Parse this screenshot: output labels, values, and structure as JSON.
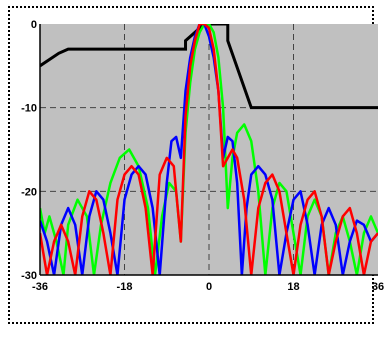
{
  "chart_data": {
    "type": "line",
    "title": "",
    "xlabel": "",
    "ylabel": "",
    "xlim": [
      -36,
      36
    ],
    "ylim": [
      -30,
      0
    ],
    "x_ticks": [
      "-36",
      "-18",
      "0",
      "18",
      "36"
    ],
    "y_ticks": [
      "0",
      "-10",
      "-20",
      "-30"
    ],
    "grid": true,
    "legend": "none",
    "background_color": "#c0c0c0",
    "mask": {
      "color": "#000000",
      "x": [
        -36,
        -32,
        -30,
        -5,
        -5,
        -1,
        4,
        4,
        9,
        36
      ],
      "y": [
        -5,
        -3.5,
        -3,
        -3,
        -2,
        0,
        0,
        -2,
        -10,
        -10
      ]
    },
    "series": [
      {
        "color": "#00ff00",
        "x": [
          -36,
          -35,
          -34,
          -32.5,
          -31,
          -30,
          -28,
          -26,
          -24.5,
          -23,
          -21,
          -19,
          -17,
          -15,
          -13,
          -11.5,
          -10,
          -8.5,
          -7,
          -6,
          -5,
          -4,
          -3,
          -2,
          -1,
          0,
          1,
          2,
          3,
          4,
          5,
          6,
          7.5,
          9,
          10.5,
          12,
          13.5,
          15,
          16.5,
          18,
          19.5,
          21,
          22.5,
          24,
          25.5,
          27,
          28.5,
          30,
          31.5,
          33,
          34.5,
          36
        ],
        "y": [
          -22,
          -25,
          -23,
          -26,
          -30,
          -24,
          -21,
          -23,
          -30,
          -24,
          -19,
          -16,
          -15,
          -17,
          -22,
          -30,
          -23,
          -19,
          -20,
          -26,
          -13,
          -7,
          -3,
          -1,
          0,
          0,
          -1,
          -4,
          -10,
          -22,
          -16,
          -13,
          -12,
          -14,
          -20,
          -30,
          -22,
          -19,
          -20,
          -25,
          -30,
          -23,
          -21,
          -23,
          -30,
          -25,
          -23,
          -26,
          -30,
          -25,
          -23,
          -25
        ]
      },
      {
        "color": "#0000ff",
        "x": [
          -36,
          -34.5,
          -33,
          -31.5,
          -30,
          -28.5,
          -27,
          -25.5,
          -24,
          -22.5,
          -21,
          -19.5,
          -18,
          -16.5,
          -15,
          -13.5,
          -12,
          -10.5,
          -9,
          -8,
          -7,
          -6,
          -5,
          -4,
          -3,
          -2,
          -1,
          0,
          1,
          2,
          3,
          4,
          5,
          6,
          7,
          8,
          9,
          10.5,
          12,
          13.5,
          15,
          16.5,
          18,
          19.5,
          21,
          22.5,
          24,
          25.5,
          27,
          28.5,
          30,
          31.5,
          33,
          34.5,
          36
        ],
        "y": [
          -23.5,
          -26,
          -30,
          -24,
          -22,
          -24,
          -30,
          -23,
          -20,
          -21,
          -25,
          -30,
          -21,
          -18,
          -17,
          -18,
          -22,
          -30,
          -19,
          -14,
          -13.5,
          -16,
          -8,
          -4,
          -1.5,
          0,
          0,
          -1.5,
          -4,
          -8,
          -16,
          -13.5,
          -14,
          -19,
          -30,
          -22,
          -18,
          -17,
          -18,
          -21,
          -30,
          -25,
          -21,
          -20,
          -24,
          -30,
          -24,
          -22,
          -24,
          -30,
          -26,
          -23.5,
          -24,
          -26,
          -25
        ]
      },
      {
        "color": "#ff0000",
        "x": [
          -36,
          -34.5,
          -33,
          -31.5,
          -30,
          -28.5,
          -27,
          -25.5,
          -24,
          -22.5,
          -21,
          -19.5,
          -18,
          -16.5,
          -15,
          -13.5,
          -12,
          -10.5,
          -9,
          -7.5,
          -6,
          -5,
          -4,
          -3,
          -2,
          -1,
          0,
          1,
          2,
          3,
          4,
          5,
          6,
          7.5,
          9,
          10.5,
          12,
          13.5,
          15,
          16.5,
          18,
          19.5,
          21,
          22.5,
          24,
          25.5,
          27,
          28.5,
          30,
          31.5,
          33,
          34.5,
          36
        ],
        "y": [
          -25,
          -30,
          -26,
          -24,
          -26,
          -30,
          -23,
          -20,
          -21,
          -25,
          -30,
          -21,
          -18,
          -17,
          -18,
          -22,
          -30,
          -18,
          -16,
          -17,
          -26,
          -11,
          -5,
          -2,
          0,
          0,
          -0.5,
          -3,
          -8,
          -17,
          -16,
          -15,
          -16,
          -21,
          -30,
          -22,
          -19,
          -18,
          -20,
          -25,
          -30,
          -24,
          -21,
          -20,
          -23,
          -30,
          -26,
          -23,
          -22,
          -25,
          -30,
          -26,
          -25
        ]
      }
    ]
  }
}
